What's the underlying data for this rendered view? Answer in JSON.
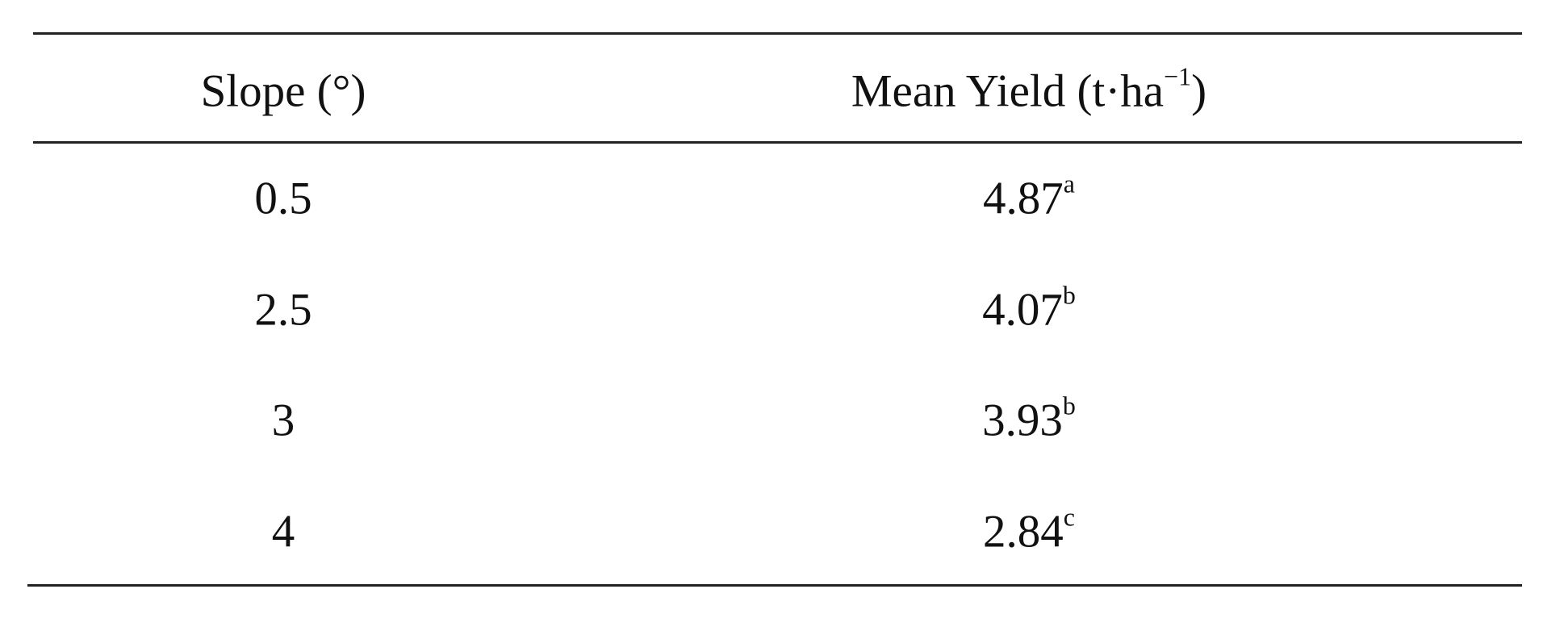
{
  "table": {
    "header": [
      {
        "text": "Slope (°)"
      },
      {
        "text": "Mean Yield (t·ha",
        "sup": "−1",
        "after": ")"
      }
    ],
    "rows": [
      [
        {
          "text": "0.5"
        },
        {
          "text": "4.87",
          "sup": "a"
        }
      ],
      [
        {
          "text": "2.5"
        },
        {
          "text": "4.07",
          "sup": "b"
        }
      ],
      [
        {
          "text": "3"
        },
        {
          "text": "3.93",
          "sup": "b"
        }
      ],
      [
        {
          "text": "4"
        },
        {
          "text": "2.84",
          "sup": "c"
        }
      ]
    ]
  }
}
